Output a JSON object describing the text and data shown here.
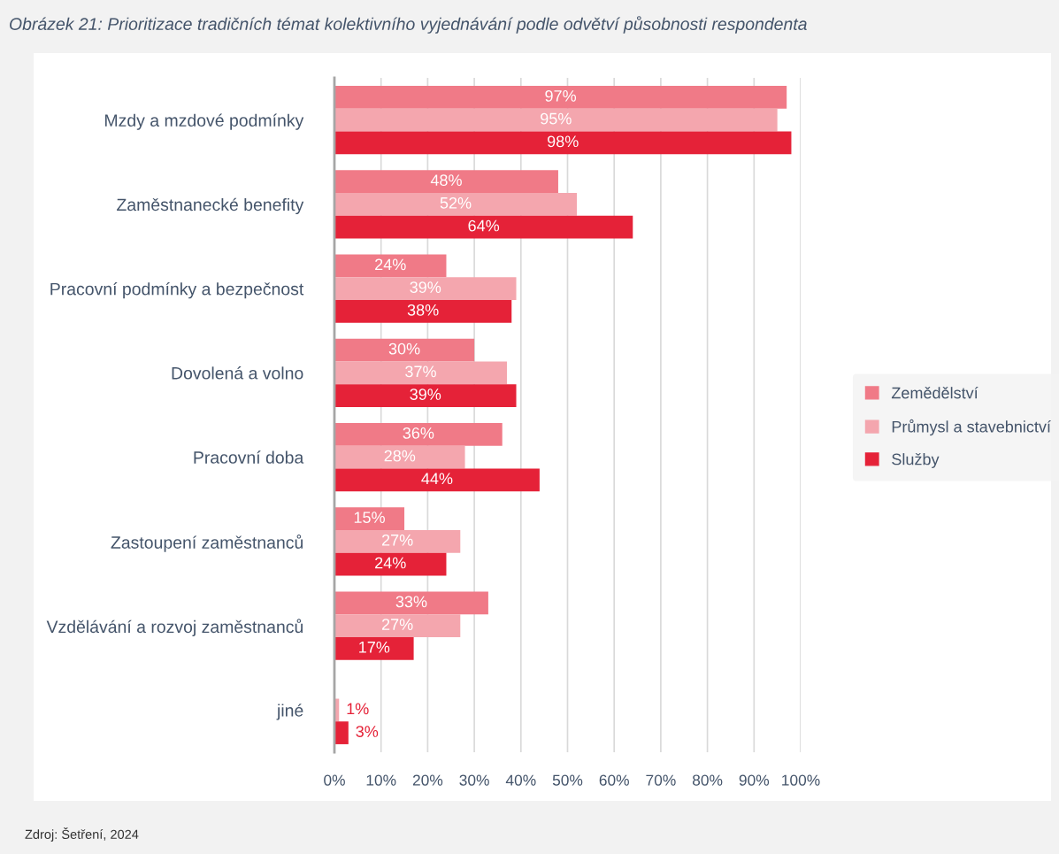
{
  "chart_data": {
    "type": "bar",
    "orientation": "horizontal",
    "title": "Obrázek 21: Prioritizace tradičních témat kolektivního vyjednávání podle odvětví působnosti respondenta",
    "categories": [
      "Mzdy a mzdové podmínky",
      "Zaměstnanecké benefity",
      "Pracovní podmínky a bezpečnost",
      "Dovolená a volno",
      "Pracovní doba",
      "Zastoupení zaměstnanců",
      "Vzdělávání a rozvoj zaměstnanců",
      "jiné"
    ],
    "series": [
      {
        "name": "Zemědělství",
        "color": "#f07a87",
        "values": [
          97,
          48,
          24,
          30,
          36,
          15,
          33,
          0
        ],
        "value_labels": [
          "97%",
          "48%",
          "24%",
          "30%",
          "36%",
          "15%",
          "33%",
          null
        ]
      },
      {
        "name": "Průmysl a stavebnictví",
        "color": "#f4a6ae",
        "values": [
          95,
          52,
          39,
          37,
          28,
          27,
          27,
          1
        ],
        "value_labels": [
          "95%",
          "52%",
          "39%",
          "37%",
          "28%",
          "27%",
          "27%",
          "1%"
        ]
      },
      {
        "name": "Služby",
        "color": "#e52238",
        "values": [
          98,
          64,
          38,
          39,
          44,
          24,
          17,
          3
        ],
        "value_labels": [
          "98%",
          "64%",
          "38%",
          "39%",
          "44%",
          "24%",
          "17%",
          "3%"
        ]
      }
    ],
    "xlim": [
      0,
      100
    ],
    "xticks": [
      {
        "value": 0,
        "label": "0%"
      },
      {
        "value": 10,
        "label": "10%"
      },
      {
        "value": 20,
        "label": "20%"
      },
      {
        "value": 30,
        "label": "30%"
      },
      {
        "value": 40,
        "label": "40%"
      },
      {
        "value": 50,
        "label": "50%"
      },
      {
        "value": 60,
        "label": "60%"
      },
      {
        "value": 70,
        "label": "70%"
      },
      {
        "value": 80,
        "label": "80%"
      },
      {
        "value": 90,
        "label": "90%"
      },
      {
        "value": 100,
        "label": "100%"
      }
    ],
    "grid": "x",
    "legend": "right",
    "annotations": [
      "Zdroj: Šetření, 2024"
    ]
  }
}
